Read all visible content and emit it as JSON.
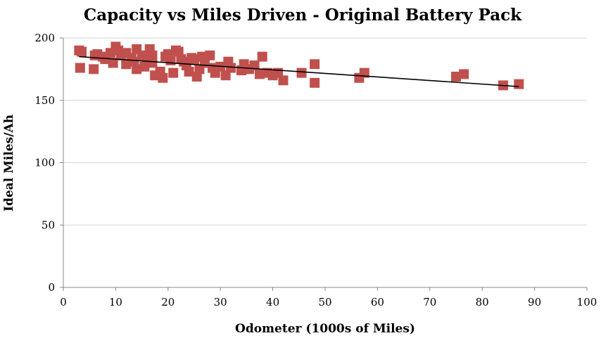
{
  "chart_data": {
    "type": "scatter",
    "title": "Capacity vs Miles Driven - Original Battery Pack",
    "xlabel": "Odometer (1000s of Miles)",
    "ylabel": "Ideal Miles/Ah",
    "xlim": [
      0,
      100
    ],
    "ylim": [
      0,
      200
    ],
    "xticks": [
      0,
      10,
      20,
      30,
      40,
      50,
      60,
      70,
      80,
      90,
      100
    ],
    "yticks": [
      0,
      50,
      100,
      150,
      200
    ],
    "grid": "horizontal",
    "legend": "none",
    "marker": "square",
    "marker_color": "#c0504d",
    "trendline": {
      "type": "linear",
      "color": "#000000",
      "x": [
        3,
        87
      ],
      "y": [
        185,
        161
      ]
    },
    "points": [
      {
        "x": 3,
        "y": 190
      },
      {
        "x": 3.5,
        "y": 189
      },
      {
        "x": 3.2,
        "y": 176
      },
      {
        "x": 6,
        "y": 186
      },
      {
        "x": 6.5,
        "y": 187
      },
      {
        "x": 5.8,
        "y": 175
      },
      {
        "x": 7.5,
        "y": 185
      },
      {
        "x": 8,
        "y": 183
      },
      {
        "x": 9,
        "y": 188
      },
      {
        "x": 9.5,
        "y": 180
      },
      {
        "x": 10,
        "y": 193
      },
      {
        "x": 10.5,
        "y": 190
      },
      {
        "x": 11,
        "y": 186
      },
      {
        "x": 12,
        "y": 188
      },
      {
        "x": 12,
        "y": 179
      },
      {
        "x": 13,
        "y": 184
      },
      {
        "x": 13.5,
        "y": 181
      },
      {
        "x": 14,
        "y": 191
      },
      {
        "x": 14,
        "y": 175
      },
      {
        "x": 15,
        "y": 186
      },
      {
        "x": 15.5,
        "y": 177
      },
      {
        "x": 16,
        "y": 183
      },
      {
        "x": 16.5,
        "y": 191
      },
      {
        "x": 17,
        "y": 186
      },
      {
        "x": 17,
        "y": 180
      },
      {
        "x": 17.5,
        "y": 170
      },
      {
        "x": 18.5,
        "y": 173
      },
      {
        "x": 19,
        "y": 168
      },
      {
        "x": 19.5,
        "y": 185
      },
      {
        "x": 20,
        "y": 187
      },
      {
        "x": 20.5,
        "y": 182
      },
      {
        "x": 21,
        "y": 172
      },
      {
        "x": 21.5,
        "y": 190
      },
      {
        "x": 22,
        "y": 189
      },
      {
        "x": 22.5,
        "y": 183
      },
      {
        "x": 23,
        "y": 181
      },
      {
        "x": 23.5,
        "y": 178
      },
      {
        "x": 24,
        "y": 173
      },
      {
        "x": 24.5,
        "y": 184
      },
      {
        "x": 25,
        "y": 183
      },
      {
        "x": 25.5,
        "y": 169
      },
      {
        "x": 26,
        "y": 175
      },
      {
        "x": 26.5,
        "y": 185
      },
      {
        "x": 27,
        "y": 180
      },
      {
        "x": 28,
        "y": 186
      },
      {
        "x": 28.5,
        "y": 176
      },
      {
        "x": 29,
        "y": 172
      },
      {
        "x": 30,
        "y": 177
      },
      {
        "x": 31,
        "y": 170
      },
      {
        "x": 31.5,
        "y": 181
      },
      {
        "x": 32,
        "y": 176
      },
      {
        "x": 34,
        "y": 174
      },
      {
        "x": 34.5,
        "y": 179
      },
      {
        "x": 35.5,
        "y": 175
      },
      {
        "x": 36.5,
        "y": 178
      },
      {
        "x": 37.5,
        "y": 171
      },
      {
        "x": 38,
        "y": 185
      },
      {
        "x": 39,
        "y": 172
      },
      {
        "x": 40,
        "y": 170
      },
      {
        "x": 41,
        "y": 172
      },
      {
        "x": 42,
        "y": 166
      },
      {
        "x": 45.5,
        "y": 172
      },
      {
        "x": 48,
        "y": 179
      },
      {
        "x": 48,
        "y": 164
      },
      {
        "x": 56.5,
        "y": 168
      },
      {
        "x": 57.5,
        "y": 172
      },
      {
        "x": 75,
        "y": 169
      },
      {
        "x": 76.5,
        "y": 171
      },
      {
        "x": 84,
        "y": 162
      },
      {
        "x": 87,
        "y": 163
      }
    ]
  }
}
